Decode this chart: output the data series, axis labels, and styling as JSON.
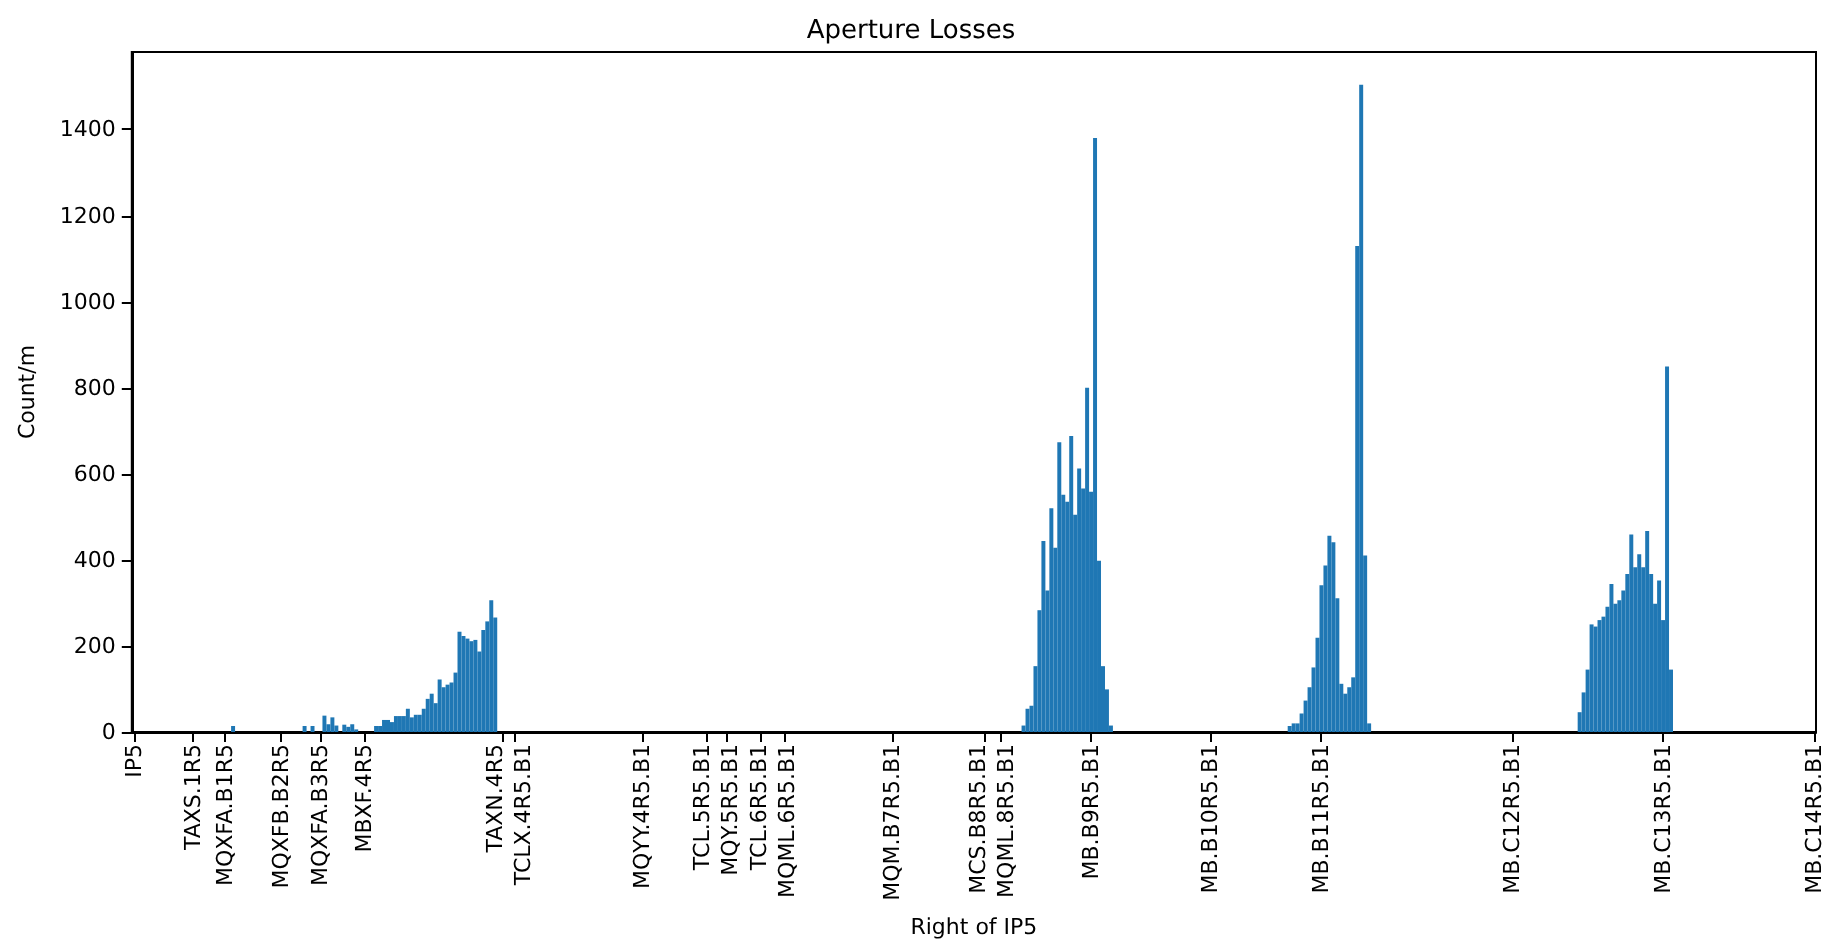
{
  "chart_data": {
    "type": "bar",
    "title": "Aperture Losses",
    "xlabel": "Right of IP5",
    "ylabel": "Count/m",
    "color": "#1f77b4",
    "categories": [
      "IP5",
      null,
      null,
      null,
      null,
      null,
      null,
      null,
      null,
      null,
      null,
      null,
      null,
      null,
      null,
      "TAXS.1R5",
      null,
      null,
      null,
      null,
      null,
      null,
      null,
      "MQXFA.B1R5",
      null,
      null,
      null,
      null,
      null,
      null,
      null,
      null,
      null,
      null,
      null,
      null,
      null,
      "MQXFB.B2R5",
      null,
      null,
      null,
      null,
      null,
      null,
      null,
      null,
      null,
      "MQXFA.B3R5",
      null,
      null,
      null,
      null,
      null,
      null,
      null,
      null,
      null,
      null,
      "MBXF.4R5",
      null,
      null,
      null,
      null,
      null,
      null,
      null,
      null,
      null,
      null,
      null,
      null,
      null,
      null,
      null,
      null,
      null,
      null,
      null,
      null,
      null,
      null,
      null,
      null,
      null,
      null,
      null,
      null,
      null,
      null,
      null,
      null,
      null,
      null,
      "TAXN.4R5",
      null,
      null,
      "TCLX.4R5.B1",
      null,
      null,
      null,
      null,
      null,
      null,
      null,
      null,
      null,
      null,
      null,
      null,
      null,
      null,
      null,
      null,
      null,
      null,
      null,
      null,
      null,
      null,
      null,
      null,
      null,
      null,
      null,
      null,
      null,
      null,
      null,
      "MQYY.4R5.B1",
      null,
      null,
      null,
      null,
      null,
      null,
      null,
      null,
      null,
      null,
      null,
      null,
      null,
      null,
      null,
      "TCL.5R5.B1",
      null,
      null,
      null,
      null,
      "MQY.5R5.B1",
      null,
      null,
      null,
      null,
      null,
      null,
      null,
      null,
      "TCL.6R5.B1",
      null,
      null,
      null,
      null,
      null,
      "MQML.6R5.B1",
      null,
      null,
      null,
      null,
      null,
      null,
      null,
      null,
      null,
      null,
      null,
      null,
      null,
      null,
      null,
      null,
      null,
      null,
      null,
      null,
      null,
      null,
      null,
      null,
      null,
      null,
      "MQM.B7R5.B1",
      null,
      null,
      null,
      null,
      null,
      null,
      null,
      null,
      null,
      null,
      null,
      null,
      null,
      null,
      null,
      null,
      null,
      null,
      null,
      null,
      null,
      null,
      "MCS.B8R5.B1",
      null,
      null,
      null,
      "MQML.8R5.B1",
      null,
      null,
      null,
      null,
      null,
      null,
      null,
      null,
      null,
      null,
      null,
      null,
      null,
      null,
      null,
      null,
      null,
      null,
      null,
      null,
      null,
      null,
      "MB.B9R5.B1",
      null,
      null,
      null,
      null,
      null,
      null,
      null,
      null,
      null,
      null,
      null,
      null,
      null,
      null,
      null,
      null,
      null,
      null,
      null,
      null,
      null,
      null,
      null,
      null,
      null,
      null,
      null,
      null,
      null,
      "MB.B10R5.B1",
      null,
      null,
      null,
      null,
      null,
      null,
      null,
      null,
      null,
      null,
      null,
      null,
      null,
      null,
      null,
      null,
      null,
      null,
      null,
      null,
      null,
      null,
      null,
      null,
      null,
      null,
      null,
      "MB.B11R5.B1",
      null,
      null,
      null,
      null,
      null,
      null,
      null,
      null,
      null,
      null,
      null,
      null,
      null,
      null,
      null,
      null,
      null,
      null,
      null,
      null,
      null,
      null,
      null,
      null,
      null,
      null,
      null,
      null,
      null,
      null,
      null,
      null,
      null,
      null,
      null,
      null,
      null,
      null,
      null,
      null,
      null,
      null,
      null,
      null,
      null,
      null,
      null,
      "MB.C12R5.B1",
      null,
      null,
      null,
      null,
      null,
      null,
      null,
      null,
      null,
      null,
      null,
      null,
      null,
      null,
      null,
      null,
      null,
      null,
      null,
      null,
      null,
      null,
      null,
      null,
      null,
      null,
      null,
      null,
      null,
      null,
      null,
      null,
      null,
      null,
      null,
      null,
      null,
      "MB.C13R5.B1",
      null,
      null,
      null,
      null,
      null,
      null,
      null,
      null,
      null,
      null,
      null,
      null,
      null,
      null,
      null,
      null,
      null,
      null,
      null,
      null,
      null,
      null,
      null,
      null,
      null,
      null,
      null,
      null,
      null,
      null,
      null,
      null,
      null,
      null,
      null,
      null,
      null,
      "MB.C14R5.B1"
    ],
    "values": [
      0,
      0,
      0,
      0,
      0,
      0,
      0,
      0,
      0,
      0,
      0,
      0,
      0,
      0,
      0,
      0,
      0,
      0,
      0,
      0,
      0,
      0,
      0,
      0,
      0,
      14,
      0,
      0,
      0,
      0,
      0,
      0,
      0,
      0,
      0,
      0,
      0,
      0,
      0,
      0,
      0,
      0,
      0,
      14,
      0,
      14,
      0,
      0,
      38,
      18,
      34,
      15,
      0,
      17,
      12,
      18,
      6,
      0,
      0,
      0,
      0,
      14,
      14,
      28,
      28,
      23,
      37,
      37,
      37,
      54,
      34,
      40,
      40,
      54,
      77,
      89,
      67,
      122,
      104,
      110,
      115,
      138,
      233,
      223,
      217,
      211,
      214,
      187,
      237,
      257,
      306,
      266,
      0,
      0,
      0,
      0,
      0,
      0,
      0,
      0,
      0,
      0,
      0,
      0,
      0,
      0,
      0,
      0,
      0,
      0,
      0,
      0,
      0,
      0,
      0,
      0,
      0,
      0,
      0,
      0,
      0,
      0,
      0,
      0,
      0,
      0,
      0,
      0,
      0,
      0,
      0,
      0,
      0,
      0,
      0,
      0,
      0,
      0,
      0,
      0,
      0,
      0,
      0,
      0,
      0,
      0,
      0,
      0,
      0,
      0,
      0,
      0,
      0,
      0,
      0,
      0,
      0,
      0,
      0,
      0,
      0,
      0,
      0,
      0,
      0,
      0,
      0,
      0,
      0,
      0,
      0,
      0,
      0,
      0,
      0,
      0,
      0,
      0,
      0,
      0,
      0,
      0,
      0,
      0,
      0,
      0,
      0,
      0,
      0,
      0,
      0,
      0,
      0,
      0,
      0,
      0,
      0,
      0,
      0,
      0,
      0,
      0,
      0,
      0,
      0,
      0,
      0,
      0,
      0,
      0,
      0,
      0,
      0,
      0,
      0,
      0,
      0,
      0,
      0,
      0,
      0,
      0,
      0,
      0,
      15,
      54,
      61,
      153,
      283,
      444,
      329,
      520,
      428,
      673,
      551,
      535,
      688,
      505,
      612,
      566,
      800,
      558,
      1380,
      398,
      153,
      99,
      15,
      0,
      0,
      0,
      0,
      0,
      0,
      0,
      0,
      0,
      0,
      0,
      0,
      0,
      0,
      0,
      0,
      0,
      0,
      0,
      0,
      0,
      0,
      0,
      0,
      0,
      0,
      0,
      0,
      0,
      0,
      0,
      0,
      0,
      0,
      0,
      0,
      0,
      0,
      0,
      0,
      0,
      0,
      0,
      0,
      14,
      20,
      20,
      43,
      73,
      104,
      150,
      219,
      341,
      387,
      456,
      441,
      311,
      112,
      89,
      104,
      127,
      1129,
      1504,
      410,
      20,
      0,
      0,
      0,
      0,
      0,
      0,
      0,
      0,
      0,
      0,
      0,
      0,
      0,
      0,
      0,
      0,
      0,
      0,
      0,
      0,
      0,
      0,
      0,
      0,
      0,
      0,
      0,
      0,
      0,
      0,
      0,
      0,
      0,
      0,
      0,
      0,
      0,
      0,
      0,
      0,
      0,
      0,
      0,
      0,
      0,
      0,
      0,
      0,
      0,
      0,
      0,
      0,
      46,
      92,
      145,
      250,
      245,
      260,
      268,
      291,
      344,
      298,
      306,
      329,
      367,
      459,
      383,
      413,
      383,
      467,
      367,
      298,
      352,
      260,
      849,
      145,
      0,
      0,
      0,
      0,
      0,
      0,
      0,
      0,
      0,
      0,
      0,
      0,
      0,
      0,
      0,
      0,
      0,
      0,
      0,
      0,
      0,
      0,
      0,
      0,
      0,
      0,
      0,
      0,
      0,
      0,
      0,
      0,
      0,
      0,
      0,
      0
    ],
    "ylim": [
      0,
      1580
    ],
    "yticks": [
      0,
      200,
      400,
      600,
      800,
      1000,
      1200,
      1400
    ]
  }
}
